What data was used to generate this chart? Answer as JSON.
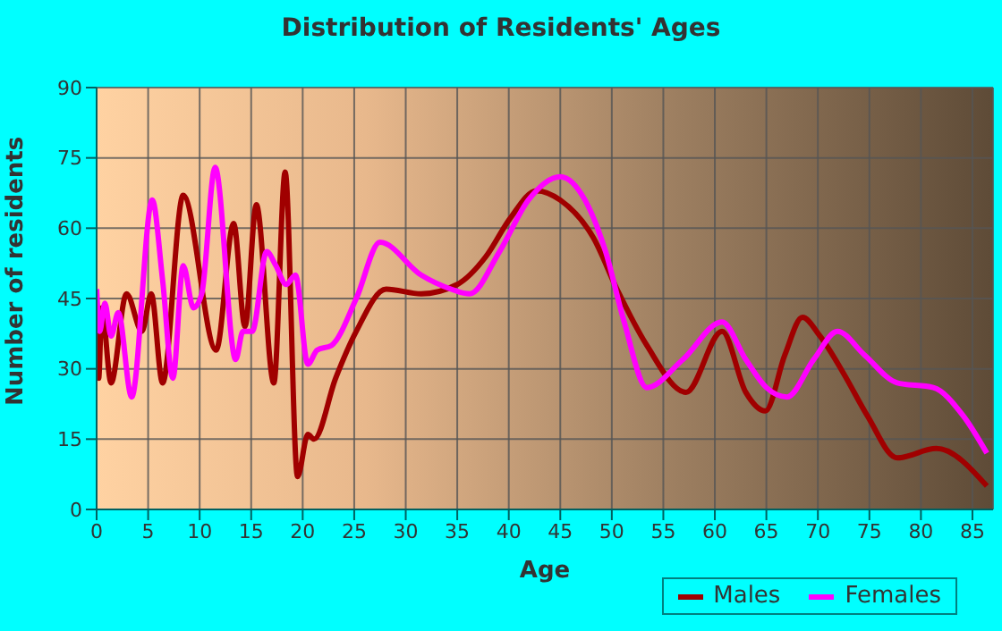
{
  "chart_data": {
    "type": "line",
    "title": "Distribution of Residents' Ages",
    "xlabel": "Age",
    "ylabel": "Number of residents",
    "xlim": [
      0,
      87
    ],
    "xticks": [
      0,
      5,
      10,
      15,
      20,
      25,
      30,
      35,
      40,
      45,
      50,
      55,
      60,
      65,
      70,
      75,
      80,
      85
    ],
    "ylim": [
      0,
      90
    ],
    "yticks": [
      0,
      15,
      30,
      45,
      60,
      75,
      90
    ],
    "grid": true,
    "legend": "bottom right",
    "marker": "none",
    "line_style": "solid",
    "series": [
      {
        "name": "Males",
        "color": "#a00000",
        "x": [
          0,
          0.2,
          0.5,
          1.4,
          2.9,
          4.4,
          5.3,
          6.4,
          8.4,
          11.6,
          13.3,
          14.4,
          15.5,
          17.2,
          18.3,
          19.5,
          20.5,
          21.1,
          23.2,
          25.2,
          28.1,
          31.5,
          35,
          37.8,
          40.1,
          42.7,
          45,
          48.2,
          50.5,
          53.4,
          57.2,
          60.7,
          63,
          64.9,
          66.8,
          68.5,
          70.2,
          72.5,
          74.8,
          77.7,
          81.5,
          86.4
        ],
        "values": [
          39,
          28,
          43,
          27,
          46,
          38,
          46,
          27,
          67,
          34,
          61,
          39,
          65,
          27,
          72,
          7,
          16,
          15,
          28,
          38,
          47,
          46,
          48,
          54,
          62,
          68,
          66,
          58,
          47,
          35,
          25,
          38,
          25,
          21,
          33,
          41,
          37,
          29,
          20,
          11,
          13,
          5
        ]
      },
      {
        "name": "Females",
        "color": "#ff00ff",
        "x": [
          0,
          0.3,
          0.8,
          1.4,
          2.1,
          3.4,
          5.4,
          6.4,
          7.4,
          8.4,
          9.4,
          10.2,
          11.5,
          13.5,
          14.2,
          15.1,
          16.5,
          17.4,
          18.4,
          19.3,
          20.5,
          21.4,
          22.8,
          25.2,
          27.5,
          31.5,
          34.4,
          36.2,
          39.1,
          41.9,
          45,
          47.4,
          49.4,
          51.2,
          53.4,
          56.9,
          60.7,
          63,
          65,
          67,
          69.6,
          71.9,
          74.5,
          77.7,
          81.2,
          84.1,
          86.4
        ],
        "values": [
          47,
          38,
          44,
          37,
          42,
          24,
          66,
          49,
          28,
          52,
          43,
          46,
          73,
          32,
          38,
          38,
          55,
          52,
          48,
          50,
          31,
          34,
          35,
          45,
          57,
          50,
          47,
          46,
          55,
          66,
          71,
          66,
          55,
          40,
          26,
          32,
          40,
          32,
          26,
          24,
          32,
          38,
          33,
          27,
          26,
          20,
          12
        ]
      }
    ]
  }
}
